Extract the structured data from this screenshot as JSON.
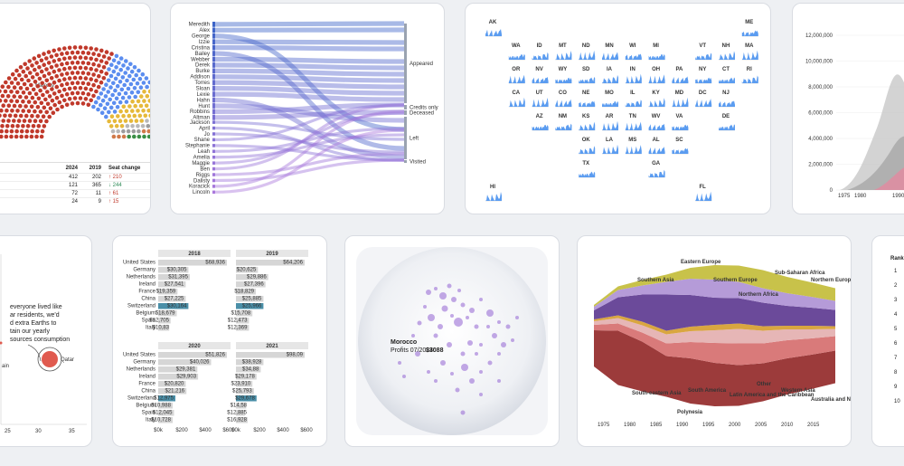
{
  "parliament": {
    "majority_label": "Majority",
    "headers": [
      "2024",
      "2019",
      "Seat change"
    ],
    "rows": [
      {
        "a": "412",
        "b": "202",
        "c": "↑ 210",
        "color": "#c0392b"
      },
      {
        "a": "121",
        "b": "365",
        "c": "↓ 244",
        "color": "#2e8b57"
      },
      {
        "a": "72",
        "b": "11",
        "c": "↑ 61",
        "color": "#c0392b"
      },
      {
        "a": "24",
        "b": "9",
        "c": "↑ 15",
        "color": "#c0392b"
      }
    ]
  },
  "sankey": {
    "names": [
      "Meredith",
      "Alex",
      "George",
      "Izzie",
      "Cristina",
      "Bailey",
      "Webber",
      "Derek",
      "Burke",
      "Addison",
      "Torres",
      "Sloan",
      "Lexie",
      "Hahn",
      "Hunt",
      "Robbins",
      "Altman",
      "Jackson",
      "April",
      "Jo",
      "Shane",
      "Stephanie",
      "Leah",
      "Amelia",
      "Maggie",
      "Ben",
      "Riggs",
      "Dalisty",
      "Koracick",
      "Lincoln"
    ],
    "outcomes": [
      "Appeared",
      "Credits only",
      "Deceased",
      "Left",
      "Visited"
    ]
  },
  "state_map": {
    "states": [
      {
        "code": "AK",
        "r": 0,
        "c": 0
      },
      {
        "code": "ME",
        "r": 0,
        "c": 11
      },
      {
        "code": "WA",
        "r": 1,
        "c": 1
      },
      {
        "code": "ID",
        "r": 1,
        "c": 2
      },
      {
        "code": "MT",
        "r": 1,
        "c": 3
      },
      {
        "code": "ND",
        "r": 1,
        "c": 4
      },
      {
        "code": "MN",
        "r": 1,
        "c": 5
      },
      {
        "code": "WI",
        "r": 1,
        "c": 6
      },
      {
        "code": "MI",
        "r": 1,
        "c": 7
      },
      {
        "code": "VT",
        "r": 1,
        "c": 9
      },
      {
        "code": "NH",
        "r": 1,
        "c": 10
      },
      {
        "code": "MA",
        "r": 1,
        "c": 11
      },
      {
        "code": "OR",
        "r": 2,
        "c": 1
      },
      {
        "code": "NV",
        "r": 2,
        "c": 2
      },
      {
        "code": "WY",
        "r": 2,
        "c": 3
      },
      {
        "code": "SD",
        "r": 2,
        "c": 4
      },
      {
        "code": "IA",
        "r": 2,
        "c": 5
      },
      {
        "code": "IN",
        "r": 2,
        "c": 6
      },
      {
        "code": "OH",
        "r": 2,
        "c": 7
      },
      {
        "code": "PA",
        "r": 2,
        "c": 8
      },
      {
        "code": "NY",
        "r": 2,
        "c": 9
      },
      {
        "code": "CT",
        "r": 2,
        "c": 10
      },
      {
        "code": "RI",
        "r": 2,
        "c": 11
      },
      {
        "code": "CA",
        "r": 3,
        "c": 1
      },
      {
        "code": "UT",
        "r": 3,
        "c": 2
      },
      {
        "code": "CO",
        "r": 3,
        "c": 3
      },
      {
        "code": "NE",
        "r": 3,
        "c": 4
      },
      {
        "code": "MO",
        "r": 3,
        "c": 5
      },
      {
        "code": "IL",
        "r": 3,
        "c": 6
      },
      {
        "code": "KY",
        "r": 3,
        "c": 7
      },
      {
        "code": "MD",
        "r": 3,
        "c": 8
      },
      {
        "code": "DC",
        "r": 3,
        "c": 9
      },
      {
        "code": "NJ",
        "r": 3,
        "c": 10
      },
      {
        "code": "AZ",
        "r": 4,
        "c": 2
      },
      {
        "code": "NM",
        "r": 4,
        "c": 3
      },
      {
        "code": "KS",
        "r": 4,
        "c": 4
      },
      {
        "code": "AR",
        "r": 4,
        "c": 5
      },
      {
        "code": "TN",
        "r": 4,
        "c": 6
      },
      {
        "code": "WV",
        "r": 4,
        "c": 7
      },
      {
        "code": "VA",
        "r": 4,
        "c": 8
      },
      {
        "code": "DE",
        "r": 4,
        "c": 10
      },
      {
        "code": "OK",
        "r": 5,
        "c": 4
      },
      {
        "code": "LA",
        "r": 5,
        "c": 5
      },
      {
        "code": "MS",
        "r": 5,
        "c": 6
      },
      {
        "code": "AL",
        "r": 5,
        "c": 7
      },
      {
        "code": "SC",
        "r": 5,
        "c": 8
      },
      {
        "code": "TX",
        "r": 6,
        "c": 4
      },
      {
        "code": "GA",
        "r": 6,
        "c": 7
      },
      {
        "code": "HI",
        "r": 7,
        "c": 0
      },
      {
        "code": "FL",
        "r": 7,
        "c": 9
      }
    ]
  },
  "area_chart": {
    "y_ticks": [
      "12,000,000",
      "10,000,000",
      "8,000,000",
      "6,000,000",
      "4,000,000",
      "2,000,000",
      "0"
    ],
    "x_ticks": [
      "1975",
      "1980",
      "1990"
    ]
  },
  "bubble": {
    "annotation_lines": [
      "everyone lived like",
      "ar residents, we'd",
      "d extra Earths to",
      "tain our yearly",
      "sources consumption"
    ],
    "label_qatar": "Qatar",
    "label_left": "ain",
    "x_ticks": [
      "25",
      "30",
      "35"
    ]
  },
  "bars": {
    "countries": [
      "United States",
      "Germany",
      "Netherlands",
      "Ireland",
      "France",
      "China",
      "Switzerland",
      "Belgium",
      "Spain",
      "Italy"
    ],
    "panels": [
      {
        "year": "2018",
        "values": [
          "$68,936",
          "$30,305",
          "$31,395",
          "$27,541",
          "$19,359",
          "$27,225",
          "$30,164",
          "$18,679",
          "$12,705",
          "$10,83"
        ],
        "fracs": [
          1,
          0.44,
          0.46,
          0.4,
          0.28,
          0.4,
          0.44,
          0.27,
          0.18,
          0.16
        ]
      },
      {
        "year": "2019",
        "values": [
          "$64,206",
          "$20,625",
          "$29,886",
          "$27,396",
          "$18,829",
          "$25,885",
          "$25,966",
          "$15,708",
          "$12,473",
          "$12,369"
        ],
        "fracs": [
          1,
          0.32,
          0.47,
          0.43,
          0.29,
          0.4,
          0.4,
          0.24,
          0.19,
          0.19
        ]
      },
      {
        "year": "2020",
        "values": [
          "$51,826",
          "$40,026",
          "$29,381",
          "$29,903",
          "$20,820",
          "$21,216",
          "$12,975",
          "$10,988",
          "$12,045",
          "$10,728"
        ],
        "fracs": [
          1,
          0.77,
          0.57,
          0.58,
          0.4,
          0.41,
          0.25,
          0.21,
          0.23,
          0.21
        ]
      },
      {
        "year": "2021",
        "values": [
          "$98,09",
          "$38,928",
          "$34,88",
          "$29,178",
          "$23,910",
          "$25,793",
          "$29,678",
          "$14,58",
          "$12,885",
          "$16,928"
        ],
        "fracs": [
          1,
          0.4,
          0.36,
          0.3,
          0.24,
          0.26,
          0.3,
          0.15,
          0.13,
          0.17
        ]
      }
    ],
    "x_ticks": [
      "$0k",
      "$200",
      "$400",
      "$600"
    ]
  },
  "globe": {
    "tooltip_title": "Morocco",
    "tooltip_label": "Profits 07/2024:",
    "tooltip_value": "$3088"
  },
  "streamgraph": {
    "labels_top": [
      "Southern Asia",
      "Eastern Europe",
      "Southern Europe",
      "Northern Africa",
      "Sub-Saharan Africa",
      "Northern Europe"
    ],
    "labels_bottom": [
      "South-eastern Asia",
      "South America",
      "Polynesia",
      "Latin America and the Caribbean",
      "Other",
      "Western Asia",
      "Australia and New Zealand"
    ],
    "x_ticks": [
      "1975",
      "1980",
      "1985",
      "1990",
      "1995",
      "2000",
      "2005",
      "2010",
      "2015"
    ]
  },
  "rank_table": {
    "header": "Rank",
    "ranks": [
      "1",
      "2",
      "3",
      "4",
      "5",
      "6",
      "7",
      "8",
      "9",
      "10"
    ]
  }
}
